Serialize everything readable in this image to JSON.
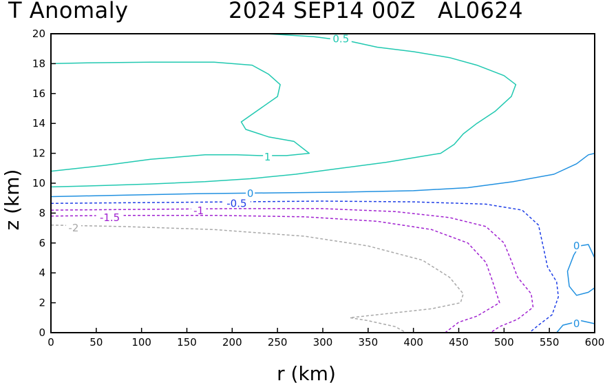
{
  "header": {
    "title_left": "T Anomaly",
    "title_right": "2024 SEP14 00Z   AL0624"
  },
  "chart_data": {
    "type": "contour",
    "title": "T Anomaly   2024 SEP14 00Z   AL0624",
    "xlabel": "r (km)",
    "ylabel": "z (km)",
    "xlim": [
      0,
      600
    ],
    "ylim": [
      0,
      20
    ],
    "xticks": [
      0,
      50,
      100,
      150,
      200,
      250,
      300,
      350,
      400,
      450,
      500,
      550,
      600
    ],
    "yticks": [
      0,
      2,
      4,
      6,
      8,
      10,
      12,
      14,
      16,
      18,
      20
    ],
    "contours": [
      {
        "level": "0.5",
        "color": "#20c8b0",
        "dashed": false,
        "points": [
          [
            238,
            20
          ],
          [
            290,
            19.8
          ],
          [
            330,
            19.5
          ],
          [
            360,
            19.1
          ],
          [
            400,
            18.8
          ],
          [
            440,
            18.4
          ],
          [
            470,
            17.9
          ],
          [
            500,
            17.2
          ],
          [
            513,
            16.6
          ],
          [
            508,
            15.8
          ],
          [
            490,
            14.8
          ],
          [
            470,
            14.0
          ],
          [
            455,
            13.3
          ],
          [
            445,
            12.6
          ],
          [
            430,
            12.0
          ],
          [
            410,
            11.8
          ],
          [
            370,
            11.4
          ],
          [
            320,
            11.0
          ],
          [
            270,
            10.6
          ],
          [
            220,
            10.3
          ],
          [
            170,
            10.1
          ],
          [
            110,
            9.95
          ],
          [
            60,
            9.85
          ],
          [
            0,
            9.75
          ]
        ],
        "labels": [
          {
            "text": "0.5",
            "x": 320,
            "y": 19.65
          }
        ]
      },
      {
        "level": "1",
        "color": "#20c8b0",
        "dashed": false,
        "points": [
          [
            0,
            18.0
          ],
          [
            40,
            18.05
          ],
          [
            110,
            18.1
          ],
          [
            180,
            18.1
          ],
          [
            222,
            17.9
          ],
          [
            240,
            17.3
          ],
          [
            253,
            16.6
          ],
          [
            250,
            15.8
          ],
          [
            210,
            14.1
          ],
          [
            215,
            13.6
          ],
          [
            240,
            13.1
          ],
          [
            268,
            12.8
          ],
          [
            285,
            12.0
          ],
          [
            260,
            11.85
          ],
          [
            230,
            11.85
          ],
          [
            205,
            11.9
          ],
          [
            170,
            11.9
          ],
          [
            110,
            11.6
          ],
          [
            60,
            11.2
          ],
          [
            0,
            10.8
          ]
        ],
        "labels": [
          {
            "text": "1",
            "x": 239,
            "y": 11.75
          }
        ]
      },
      {
        "level": "0",
        "color": "#2090e0",
        "dashed": false,
        "points": [
          [
            0,
            9.1
          ],
          [
            80,
            9.2
          ],
          [
            160,
            9.3
          ],
          [
            240,
            9.35
          ],
          [
            320,
            9.4
          ],
          [
            400,
            9.5
          ],
          [
            460,
            9.7
          ],
          [
            510,
            10.1
          ],
          [
            555,
            10.6
          ],
          [
            580,
            11.3
          ],
          [
            593,
            11.9
          ],
          [
            600,
            12.0
          ]
        ],
        "labels": [
          {
            "text": "0",
            "x": 220,
            "y": 9.3
          }
        ]
      },
      {
        "level": "0",
        "color": "#2090e0",
        "dashed": false,
        "points": [
          [
            600,
            5.0
          ],
          [
            593,
            5.9
          ],
          [
            583,
            5.8
          ],
          [
            577,
            5.2
          ],
          [
            570,
            4.1
          ],
          [
            572,
            3.1
          ],
          [
            580,
            2.5
          ],
          [
            593,
            2.7
          ],
          [
            600,
            3.0
          ]
        ],
        "labels": [
          {
            "text": "0",
            "x": 580,
            "y": 5.8
          }
        ]
      },
      {
        "level": "0",
        "color": "#2090e0",
        "dashed": false,
        "points": [
          [
            558,
            0.0
          ],
          [
            565,
            0.5
          ],
          [
            585,
            0.8
          ],
          [
            600,
            0.6
          ]
        ],
        "labels": [
          {
            "text": "0",
            "x": 580,
            "y": 0.6
          }
        ]
      },
      {
        "level": "-0.5",
        "color": "#1e3ee6",
        "dashed": true,
        "points": [
          [
            0,
            8.65
          ],
          [
            100,
            8.7
          ],
          [
            200,
            8.75
          ],
          [
            300,
            8.8
          ],
          [
            400,
            8.75
          ],
          [
            480,
            8.6
          ],
          [
            520,
            8.2
          ],
          [
            538,
            7.2
          ],
          [
            543,
            5.8
          ],
          [
            548,
            4.4
          ],
          [
            558,
            3.4
          ],
          [
            560,
            2.4
          ],
          [
            553,
            1.2
          ],
          [
            538,
            0.5
          ],
          [
            528,
            0.0
          ]
        ],
        "labels": [
          {
            "text": "-0.5",
            "x": 205,
            "y": 8.65
          }
        ]
      },
      {
        "level": "-1",
        "color": "#a020d0",
        "dashed": true,
        "points": [
          [
            0,
            8.2
          ],
          [
            100,
            8.25
          ],
          [
            200,
            8.3
          ],
          [
            300,
            8.3
          ],
          [
            380,
            8.1
          ],
          [
            440,
            7.7
          ],
          [
            480,
            7.1
          ],
          [
            500,
            6.0
          ],
          [
            508,
            4.8
          ],
          [
            515,
            3.7
          ],
          [
            530,
            2.6
          ],
          [
            532,
            1.7
          ],
          [
            515,
            0.9
          ],
          [
            495,
            0.4
          ],
          [
            485,
            0.0
          ]
        ],
        "labels": [
          {
            "text": "-1",
            "x": 163,
            "y": 8.15
          }
        ]
      },
      {
        "level": "-1.5",
        "color": "#a020d0",
        "dashed": true,
        "points": [
          [
            0,
            7.8
          ],
          [
            80,
            7.85
          ],
          [
            180,
            7.85
          ],
          [
            280,
            7.75
          ],
          [
            360,
            7.45
          ],
          [
            420,
            6.9
          ],
          [
            460,
            6.0
          ],
          [
            480,
            4.7
          ],
          [
            487,
            3.5
          ],
          [
            495,
            2.0
          ],
          [
            470,
            1.1
          ],
          [
            450,
            0.7
          ],
          [
            435,
            0.0
          ]
        ],
        "labels": [
          {
            "text": "-1.5",
            "x": 65,
            "y": 7.7
          }
        ]
      },
      {
        "level": "-2",
        "color": "#a8a8a8",
        "dashed": true,
        "points": [
          [
            0,
            7.2
          ],
          [
            80,
            7.1
          ],
          [
            180,
            6.9
          ],
          [
            280,
            6.45
          ],
          [
            350,
            5.8
          ],
          [
            410,
            4.85
          ],
          [
            440,
            3.7
          ],
          [
            455,
            2.6
          ],
          [
            452,
            2.0
          ],
          [
            420,
            1.6
          ],
          [
            375,
            1.3
          ],
          [
            330,
            1.0
          ],
          [
            350,
            0.8
          ],
          [
            380,
            0.4
          ],
          [
            392,
            0.0
          ]
        ],
        "labels": [
          {
            "text": "-2",
            "x": 25,
            "y": 7.0
          }
        ]
      }
    ]
  }
}
